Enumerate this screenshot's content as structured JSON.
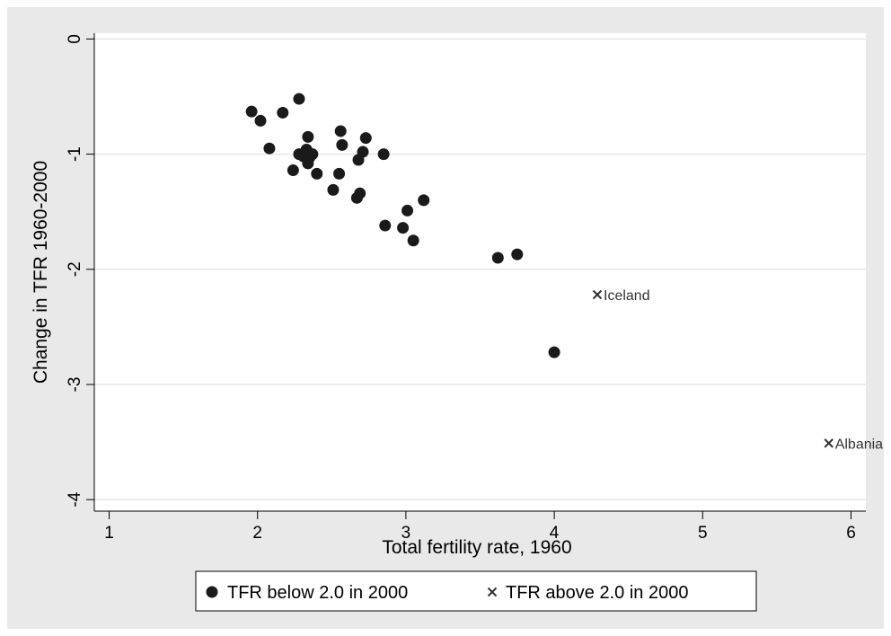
{
  "chart_data": {
    "type": "scatter",
    "title": "",
    "xlabel": "Total fertility rate, 1960",
    "ylabel": "Change in TFR 1960-2000",
    "xlim": [
      0.9,
      6.1
    ],
    "ylim": [
      -4.1,
      0.05
    ],
    "xticks": [
      1,
      2,
      3,
      4,
      5,
      6
    ],
    "xtick_labels": [
      "1",
      "2",
      "3",
      "4",
      "5",
      "6"
    ],
    "yticks": [
      0,
      -1,
      -2,
      -3,
      -4
    ],
    "ytick_labels": [
      "0",
      "-1",
      "-2",
      "-3",
      "-4"
    ],
    "grid": "horizontal",
    "legend_position": "bottom",
    "colors": {
      "plot_bg": "#ffffff",
      "figure_bg": "#e9e9e9",
      "grid": "#e6e6e6",
      "marker": "#1a1a1a",
      "x_marker": "#333333"
    },
    "series": [
      {
        "name": "TFR below 2.0 in 2000",
        "marker": "circle",
        "points": [
          {
            "x": 1.96,
            "y": -0.63
          },
          {
            "x": 2.02,
            "y": -0.71
          },
          {
            "x": 2.08,
            "y": -0.95
          },
          {
            "x": 2.17,
            "y": -0.64
          },
          {
            "x": 2.24,
            "y": -1.14
          },
          {
            "x": 2.28,
            "y": -0.52
          },
          {
            "x": 2.28,
            "y": -1.0
          },
          {
            "x": 2.31,
            "y": -1.02
          },
          {
            "x": 2.33,
            "y": -0.96
          },
          {
            "x": 2.34,
            "y": -0.85
          },
          {
            "x": 2.34,
            "y": -1.08
          },
          {
            "x": 2.35,
            "y": -1.03
          },
          {
            "x": 2.37,
            "y": -1.0
          },
          {
            "x": 2.4,
            "y": -1.17
          },
          {
            "x": 2.51,
            "y": -1.31
          },
          {
            "x": 2.55,
            "y": -1.17
          },
          {
            "x": 2.56,
            "y": -0.8
          },
          {
            "x": 2.57,
            "y": -0.92
          },
          {
            "x": 2.67,
            "y": -1.38
          },
          {
            "x": 2.68,
            "y": -1.05
          },
          {
            "x": 2.69,
            "y": -1.34
          },
          {
            "x": 2.71,
            "y": -0.98
          },
          {
            "x": 2.73,
            "y": -0.86
          },
          {
            "x": 2.85,
            "y": -1.0
          },
          {
            "x": 2.86,
            "y": -1.62
          },
          {
            "x": 2.98,
            "y": -1.64
          },
          {
            "x": 3.01,
            "y": -1.49
          },
          {
            "x": 3.05,
            "y": -1.75
          },
          {
            "x": 3.12,
            "y": -1.4
          },
          {
            "x": 3.62,
            "y": -1.9
          },
          {
            "x": 3.75,
            "y": -1.87
          },
          {
            "x": 4.0,
            "y": -2.72
          }
        ]
      },
      {
        "name": "TFR above 2.0 in 2000",
        "marker": "x",
        "points": [
          {
            "x": 4.29,
            "y": -2.22,
            "label": "Iceland"
          },
          {
            "x": 5.85,
            "y": -3.51,
            "label": "Albania"
          }
        ]
      }
    ]
  }
}
